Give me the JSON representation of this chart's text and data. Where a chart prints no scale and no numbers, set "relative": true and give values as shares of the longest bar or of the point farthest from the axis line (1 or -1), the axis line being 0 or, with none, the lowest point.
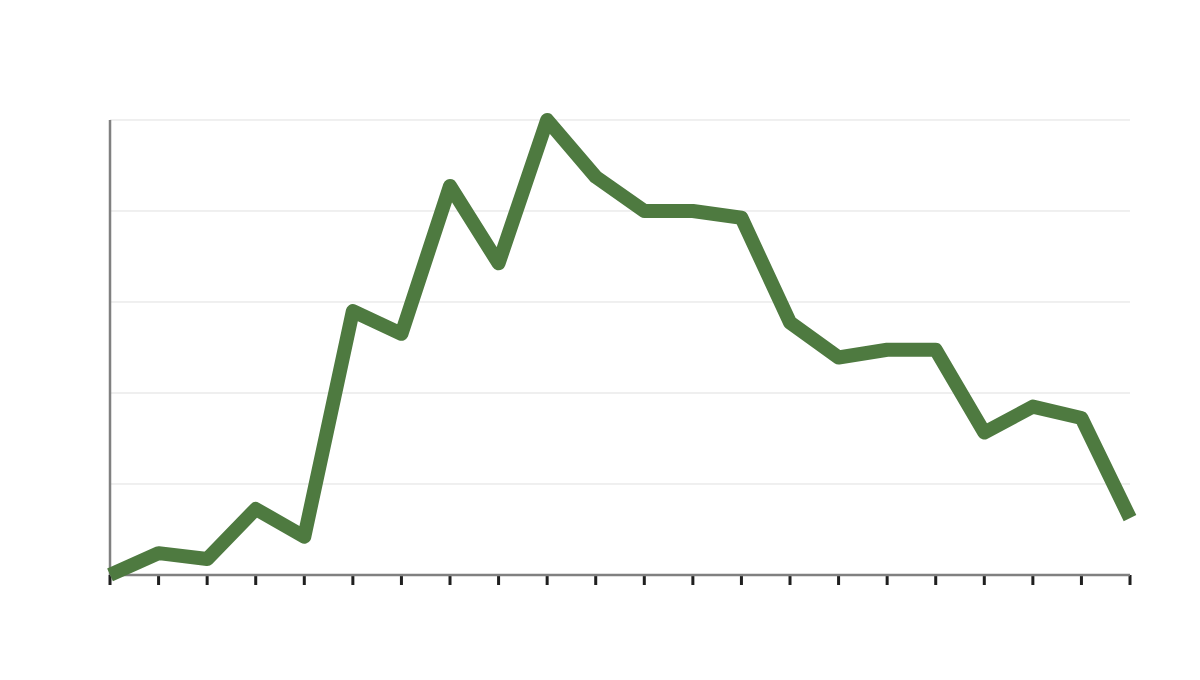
{
  "chart_data": {
    "type": "line",
    "relative": true,
    "categories": [
      null,
      null,
      null,
      null,
      null,
      null,
      null,
      null,
      null,
      null,
      null,
      null,
      null,
      null,
      null,
      null,
      null,
      null,
      null,
      null,
      null,
      null
    ],
    "series": [
      {
        "color": "#4e7a40",
        "values": [
          0,
          0.048,
          0.035,
          0.145,
          0.084,
          0.58,
          0.53,
          0.855,
          0.685,
          1,
          0.875,
          0.8,
          0.8,
          0.785,
          0.555,
          0.478,
          0.495,
          0.495,
          0.313,
          0.37,
          0.345,
          0.125
        ]
      }
    ],
    "grid": "y",
    "line_style": "solid"
  }
}
